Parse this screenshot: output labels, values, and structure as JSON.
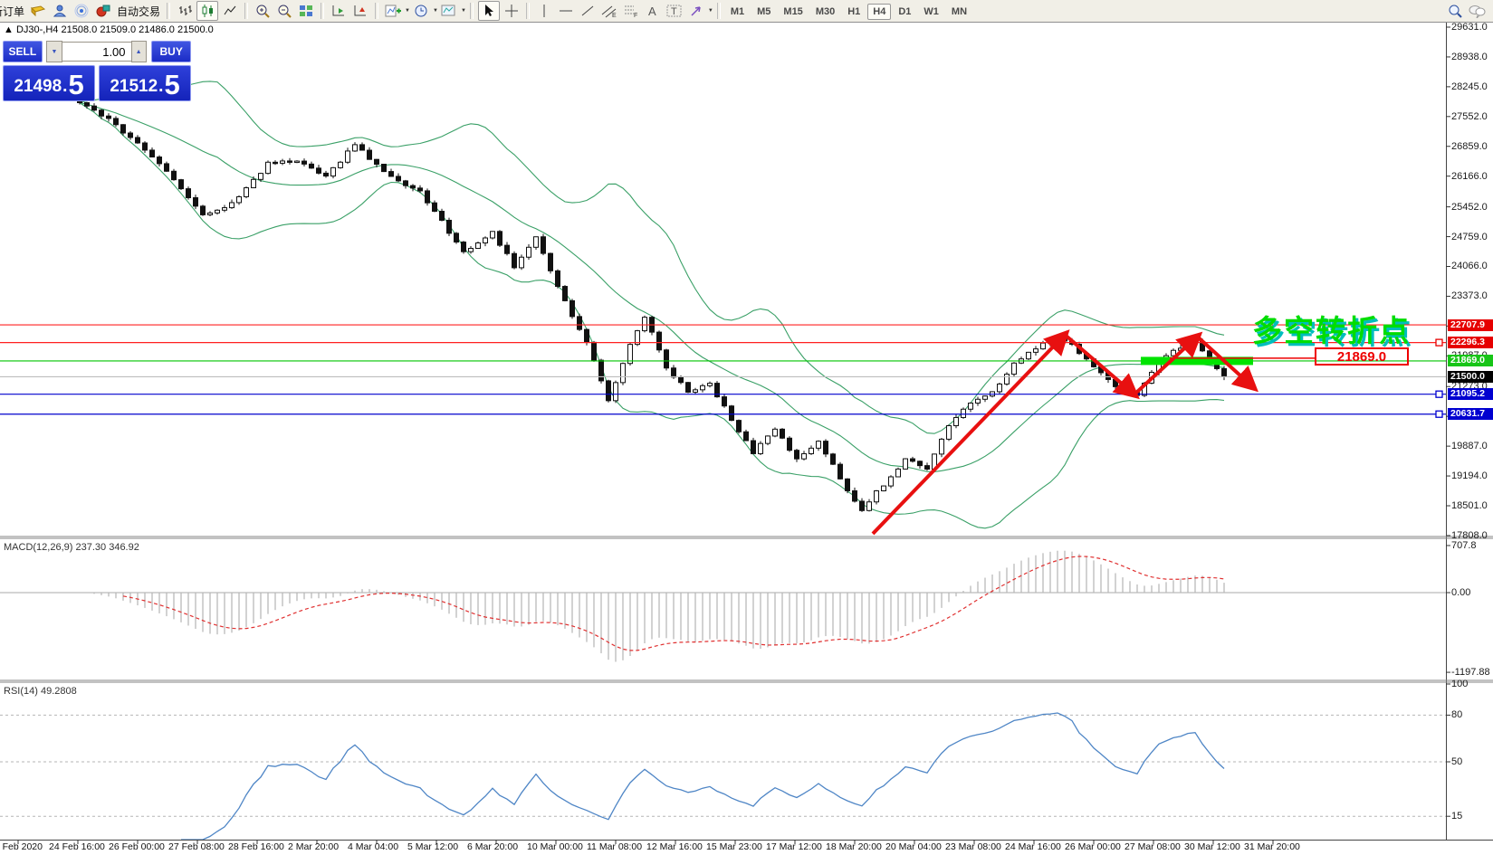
{
  "toolbar": {
    "new_order_label": "新订单",
    "autotrading_label": "自动交易",
    "timeframes": [
      "M1",
      "M5",
      "M15",
      "M30",
      "H1",
      "H4",
      "D1",
      "W1",
      "MN"
    ],
    "active_timeframe": "H4"
  },
  "symbol_line": {
    "title": "DJ30-,H4",
    "open": "21508.0",
    "high": "21509.0",
    "low": "21486.0",
    "close": "21500.0"
  },
  "quote_panel": {
    "sell_label": "SELL",
    "buy_label": "BUY",
    "volume": "1.00",
    "sell_price_int": "21498",
    "sell_price_frac": "5",
    "buy_price_int": "21512",
    "buy_price_frac": "5"
  },
  "annotations": {
    "turning_point": "多空转折点",
    "level_callout": "21869.0"
  },
  "price_axis": {
    "ticks": [
      29631.0,
      28938.0,
      28245.0,
      27552.0,
      26859.0,
      26166.0,
      25452.0,
      24759.0,
      24066.0,
      23373.0,
      22680.0,
      21987.0,
      21273.0,
      20580.0,
      19887.0,
      19194.0,
      18501.0,
      17808.0
    ],
    "level_labels": [
      {
        "value": "22707.9",
        "bg": "#e60000",
        "fg": "#ffffff",
        "marker": false
      },
      {
        "value": "22296.3",
        "bg": "#e60000",
        "fg": "#ffffff",
        "marker": true
      },
      {
        "value": "21869.0",
        "bg": "#17c517",
        "fg": "#ffffff",
        "marker": false
      },
      {
        "value": "21500.0",
        "bg": "#000000",
        "fg": "#ffffff",
        "marker": false
      },
      {
        "value": "21095.2",
        "bg": "#0000d0",
        "fg": "#ffffff",
        "marker": true
      },
      {
        "value": "20631.7",
        "bg": "#0000d0",
        "fg": "#ffffff",
        "marker": true
      }
    ]
  },
  "macd_pane": {
    "label": "MACD(12,26,9)",
    "value_main": "237.30",
    "value_signal": "346.92",
    "axis_ticks": [
      "707.8",
      "0.00",
      "-1197.88"
    ]
  },
  "rsi_pane": {
    "label": "RSI(14)",
    "value": "49.2808",
    "axis_ticks": [
      100,
      80,
      50,
      15
    ],
    "guide_levels": [
      80,
      50,
      15
    ]
  },
  "time_axis": [
    "21 Feb 2020",
    "24 Feb 16:00",
    "26 Feb 00:00",
    "27 Feb 08:00",
    "28 Feb 16:00",
    "2 Mar 20:00",
    "4 Mar 04:00",
    "5 Mar 12:00",
    "6 Mar 20:00",
    "10 Mar 00:00",
    "11 Mar 08:00",
    "12 Mar 16:00",
    "15 Mar 23:00",
    "17 Mar 12:00",
    "18 Mar 20:00",
    "20 Mar 04:00",
    "23 Mar 08:00",
    "24 Mar 16:00",
    "26 Mar 00:00",
    "27 Mar 08:00",
    "30 Mar 12:00",
    "31 Mar 20:00"
  ],
  "colors": {
    "bollinger": "#3aa067",
    "candle_up": "#ffffff",
    "candle_down": "#111111",
    "candle_border": "#111111",
    "zigzag": "#e81010",
    "highlight": "#00e400",
    "macd_hist": "#b9b9b9",
    "macd_signal": "#e03030",
    "rsi_line": "#4f86c6",
    "level_red": "#ff2020",
    "level_green": "#00c400",
    "level_blue": "#0000cd",
    "current_price_line": "#bdbdbd"
  },
  "chart_data": [
    {
      "type": "candlestick",
      "name": "DJ30- H4 price",
      "bars_visible": 159,
      "last_ohlc": {
        "open": 21508.0,
        "high": 21509.0,
        "low": 21486.0,
        "close": 21500.0
      },
      "ylim": [
        17808.0,
        29631.0
      ],
      "yticks": [
        29631.0,
        28938.0,
        28245.0,
        27552.0,
        26859.0,
        26166.0,
        25452.0,
        24759.0,
        24066.0,
        23373.0,
        22680.0,
        21987.0,
        21273.0,
        20580.0,
        19887.0,
        19194.0,
        18501.0,
        17808.0
      ],
      "price_path_anchors": [
        [
          0,
          27900
        ],
        [
          4,
          27500
        ],
        [
          8,
          26900
        ],
        [
          12,
          26300
        ],
        [
          17,
          25250
        ],
        [
          21,
          25500
        ],
        [
          26,
          26450
        ],
        [
          30,
          26550
        ],
        [
          34,
          26150
        ],
        [
          38,
          26900
        ],
        [
          42,
          26250
        ],
        [
          47,
          25800
        ],
        [
          53,
          24400
        ],
        [
          57,
          24850
        ],
        [
          60,
          24050
        ],
        [
          63,
          24750
        ],
        [
          66,
          23600
        ],
        [
          70,
          22300
        ],
        [
          73,
          20950
        ],
        [
          76,
          22250
        ],
        [
          78,
          22900
        ],
        [
          81,
          21700
        ],
        [
          84,
          21150
        ],
        [
          87,
          21350
        ],
        [
          90,
          20500
        ],
        [
          93,
          19750
        ],
        [
          96,
          20300
        ],
        [
          99,
          19550
        ],
        [
          102,
          20000
        ],
        [
          105,
          19150
        ],
        [
          108,
          18400
        ],
        [
          111,
          19000
        ],
        [
          114,
          19600
        ],
        [
          117,
          19350
        ],
        [
          120,
          20400
        ],
        [
          123,
          20900
        ],
        [
          126,
          21150
        ],
        [
          129,
          21800
        ],
        [
          132,
          22150
        ],
        [
          135,
          22400
        ],
        [
          137,
          22250
        ],
        [
          140,
          21750
        ],
        [
          143,
          21300
        ],
        [
          146,
          21080
        ],
        [
          149,
          21900
        ],
        [
          152,
          22200
        ],
        [
          154,
          22350
        ],
        [
          156,
          21900
        ],
        [
          158,
          21500
        ]
      ],
      "overlays": {
        "bollinger": {
          "period": 20,
          "deviation": 2
        },
        "horizontal_lines": [
          {
            "price": 22707.9,
            "color": "red"
          },
          {
            "price": 22296.3,
            "color": "red"
          },
          {
            "price": 21869.0,
            "color": "green"
          },
          {
            "price": 21500.0,
            "color": "gray",
            "role": "current-price"
          },
          {
            "price": 21095.2,
            "color": "blue"
          },
          {
            "price": 20631.7,
            "color": "blue"
          }
        ],
        "highlight_bar": {
          "from_bar": 146.5,
          "to_bar": 162,
          "price": 21869.0
        },
        "zigzag_barprice": [
          [
            109.5,
            17850
          ],
          [
            136,
            22480
          ],
          [
            145.6,
            21090
          ],
          [
            154.3,
            22435
          ],
          [
            162,
            21260
          ]
        ]
      }
    },
    {
      "type": "line",
      "name": "MACD(12,26,9)",
      "current_macd": 237.3,
      "current_signal": 346.92,
      "axis_range": [
        -1197.88,
        707.8
      ],
      "zero_line": 0
    },
    {
      "type": "line",
      "name": "RSI(14)",
      "current": 49.2808,
      "guide_levels": [
        80,
        50,
        15
      ],
      "axis_range": [
        0,
        100
      ]
    }
  ]
}
